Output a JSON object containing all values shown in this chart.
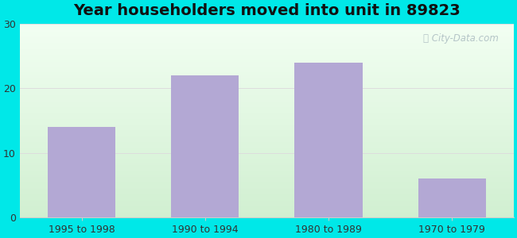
{
  "title": "Year householders moved into unit in 89823",
  "categories": [
    "1995 to 1998",
    "1990 to 1994",
    "1980 to 1989",
    "1970 to 1979"
  ],
  "values": [
    14,
    22,
    24,
    6
  ],
  "bar_color": "#b3a8d4",
  "ylim": [
    0,
    30
  ],
  "yticks": [
    0,
    10,
    20,
    30
  ],
  "background_color": "#00e8e8",
  "grid_color": "#dddddd",
  "title_fontsize": 14,
  "tick_fontsize": 9,
  "watermark": "City-Data.com",
  "grad_top": "#f0faf0",
  "grad_bottom": "#ffffff"
}
